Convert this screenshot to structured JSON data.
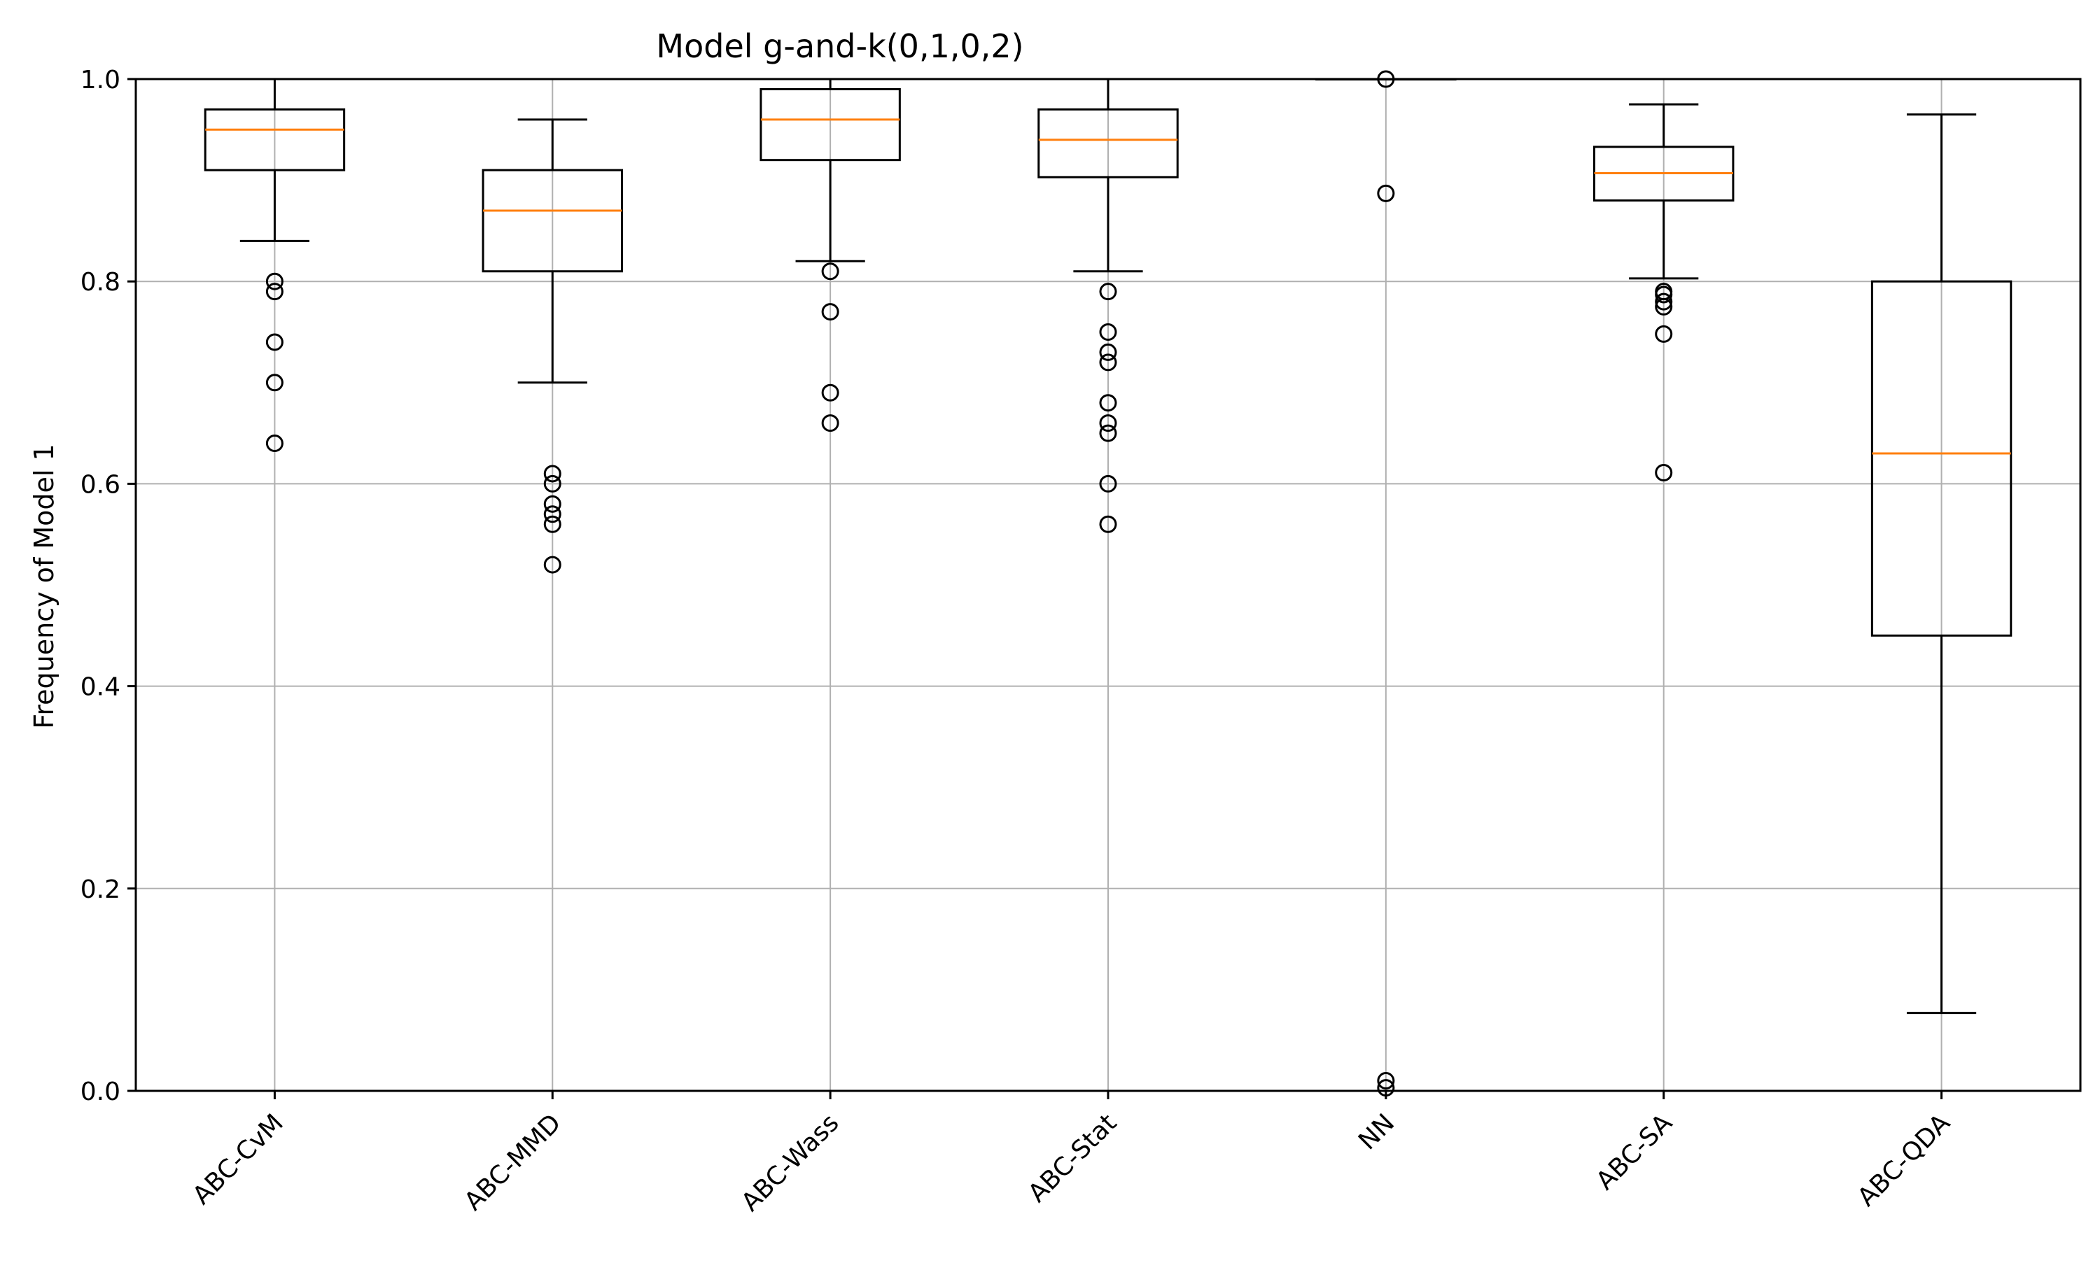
{
  "chart_data": {
    "type": "box",
    "title": "Model g-and-k(0,1,0,2)",
    "xlabel": "",
    "ylabel": "Frequency of Model 1",
    "ylim": [
      0.0,
      1.0
    ],
    "yticks": [
      "0.0",
      "0.2",
      "0.4",
      "0.6",
      "0.8",
      "1.0"
    ],
    "grid": true,
    "categories": [
      "ABC-CvM",
      "ABC-MMD",
      "ABC-Wass",
      "ABC-Stat",
      "NN",
      "ABC-SA",
      "ABC-QDA"
    ],
    "boxes": [
      {
        "label": "ABC-CvM",
        "whislo": 0.84,
        "q1": 0.91,
        "median": 0.95,
        "q3": 0.97,
        "whishi": 1.0,
        "fliers": [
          0.8,
          0.79,
          0.74,
          0.7,
          0.64
        ]
      },
      {
        "label": "ABC-MMD",
        "whislo": 0.7,
        "q1": 0.81,
        "median": 0.87,
        "q3": 0.91,
        "whishi": 0.96,
        "fliers": [
          0.61,
          0.6,
          0.58,
          0.57,
          0.56,
          0.52
        ]
      },
      {
        "label": "ABC-Wass",
        "whislo": 0.82,
        "q1": 0.92,
        "median": 0.96,
        "q3": 0.99,
        "whishi": 1.0,
        "fliers": [
          0.81,
          0.77,
          0.69,
          0.66
        ]
      },
      {
        "label": "ABC-Stat",
        "whislo": 0.81,
        "q1": 0.903,
        "median": 0.94,
        "q3": 0.97,
        "whishi": 1.0,
        "fliers": [
          0.79,
          0.75,
          0.73,
          0.72,
          0.68,
          0.66,
          0.65,
          0.6,
          0.56
        ]
      },
      {
        "label": "NN",
        "whislo": 1.0,
        "q1": 1.0,
        "median": 1.0,
        "q3": 1.0,
        "whishi": 1.0,
        "fliers": [
          1.0,
          0.887,
          0.01,
          0.003
        ]
      },
      {
        "label": "ABC-SA",
        "whislo": 0.803,
        "q1": 0.88,
        "median": 0.907,
        "q3": 0.933,
        "whishi": 0.975,
        "fliers": [
          0.79,
          0.787,
          0.78,
          0.775,
          0.748,
          0.611
        ]
      },
      {
        "label": "ABC-QDA",
        "whislo": 0.077,
        "q1": 0.45,
        "median": 0.63,
        "q3": 0.8,
        "whishi": 0.965,
        "fliers": []
      }
    ],
    "colors": {
      "box": "#000000",
      "median": "#ff7f0e",
      "grid": "#b0b0b0"
    }
  }
}
